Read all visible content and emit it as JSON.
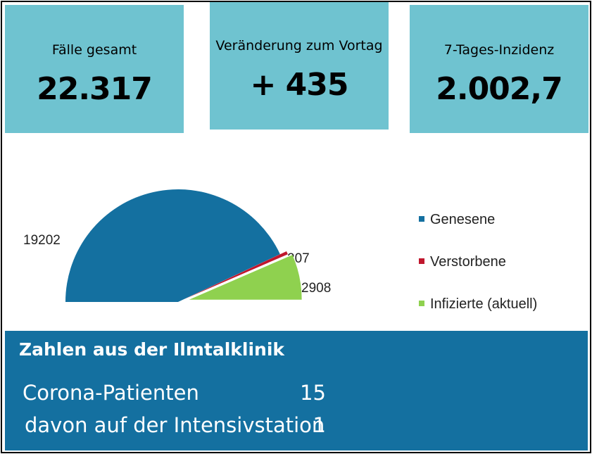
{
  "tiles": [
    {
      "label": "Fälle gesamt",
      "value": "22.317"
    },
    {
      "label": "Veränderung zum Vortag",
      "value": "+ 435"
    },
    {
      "label": "7-Tages-Inzidenz",
      "value": "2.002,7"
    }
  ],
  "chart_data": {
    "type": "pie",
    "style": "half-pie with exploded slices",
    "slices": [
      {
        "name": "Genesene",
        "value": 19202,
        "label": "19202",
        "color": "#1470a0"
      },
      {
        "name": "Verstorbene",
        "value": 207,
        "label": "207",
        "color": "#c0172d"
      },
      {
        "name": "Infizierte (aktuell)",
        "value": 2908,
        "label": "2908",
        "color": "#8fd14f"
      }
    ],
    "legend_position": "right"
  },
  "klinik": {
    "heading": "Zahlen aus der Ilmtalklinik",
    "rows": [
      {
        "label": "Corona-Patienten",
        "value": "15"
      },
      {
        "label": "davon auf der Intensivstation",
        "value": "1"
      }
    ]
  },
  "colors": {
    "tile_bg": "#6fc3d0",
    "panel_bg": "#1470a0"
  }
}
